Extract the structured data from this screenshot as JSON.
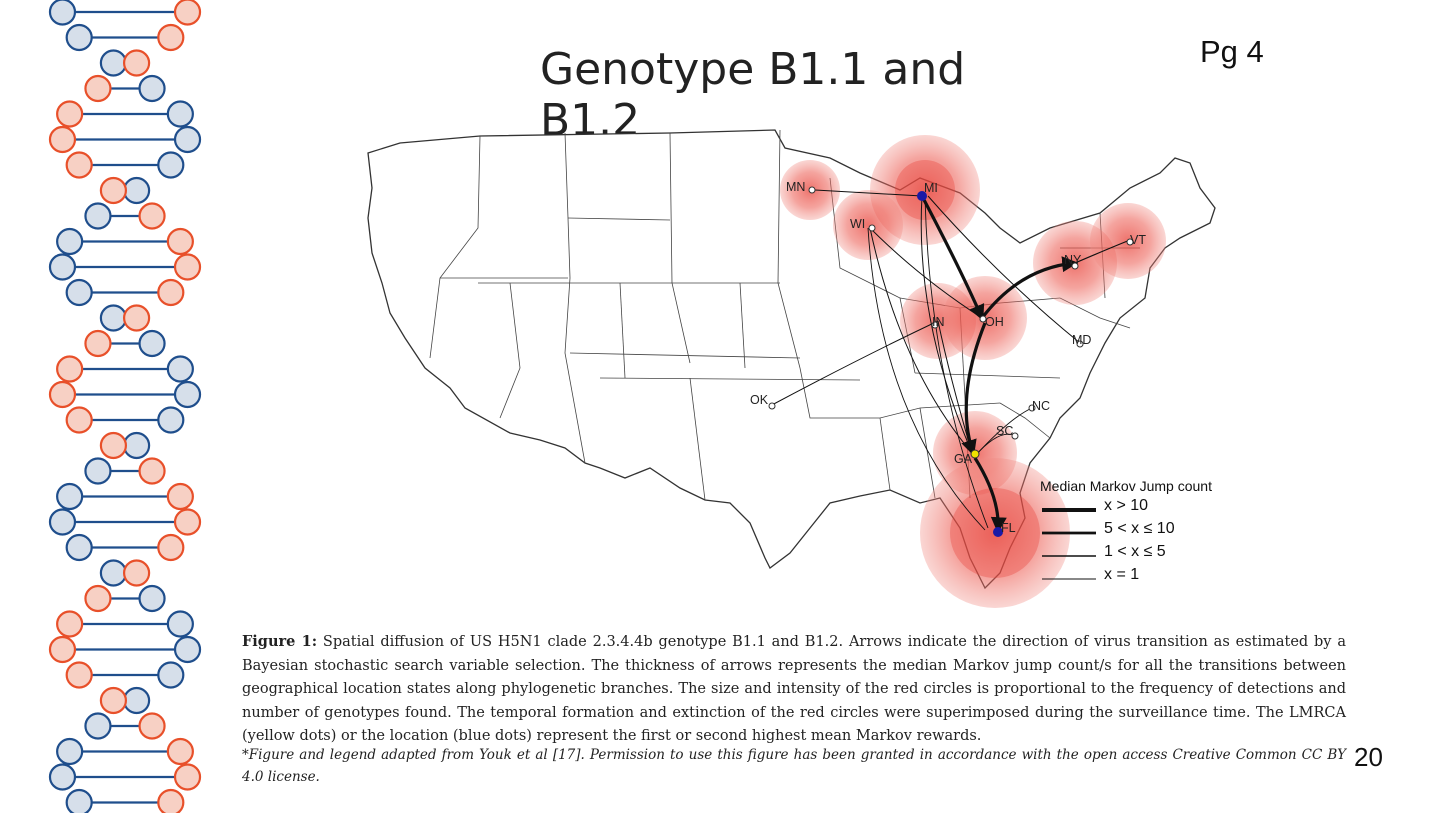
{
  "slide": {
    "title": "Genotype B1.1 and B1.2",
    "page_label": "Pg 4",
    "slide_number": "20"
  },
  "map": {
    "state_labels": [
      "MN",
      "MI",
      "WI",
      "NY",
      "VT",
      "IN",
      "OH",
      "MD",
      "OK",
      "NC",
      "SC",
      "GA",
      "FL"
    ],
    "legend": {
      "title": "Median Markov Jump count",
      "items": [
        "x > 10",
        "5 < x ≤ 10",
        "1 < x ≤ 5",
        "x = 1"
      ]
    },
    "colors": {
      "circle": "#e8433a",
      "arrow": "#111111",
      "lmrca_dot": "#f2e200",
      "location_dot": "#1a1aa6",
      "dna_blue": "#1f4e8c",
      "dna_red": "#e8502a"
    }
  },
  "caption": {
    "label": "Figure 1:",
    "text": " Spatial diffusion of US H5N1 clade 2.3.4.4b genotype B1.1 and B1.2.  Arrows indicate the direction of virus transition as estimated by a Bayesian stochastic search variable selection. The thickness of arrows represents the median Markov jump count/s for all the transitions between geographical location states along phylogenetic branches. The size and intensity of the red circles is proportional to the frequency of detections and number of genotypes found. The temporal formation and extinction of the red circles were superimposed during the surveillance time. The LMRCA (yellow dots) or the location (blue dots) represent the first or second highest mean Markov rewards.",
    "note": "*Figure and legend adapted from Youk et al [17].  Permission to use this figure has been granted in accordance with the open access Creative Common CC BY 4.0 license."
  }
}
